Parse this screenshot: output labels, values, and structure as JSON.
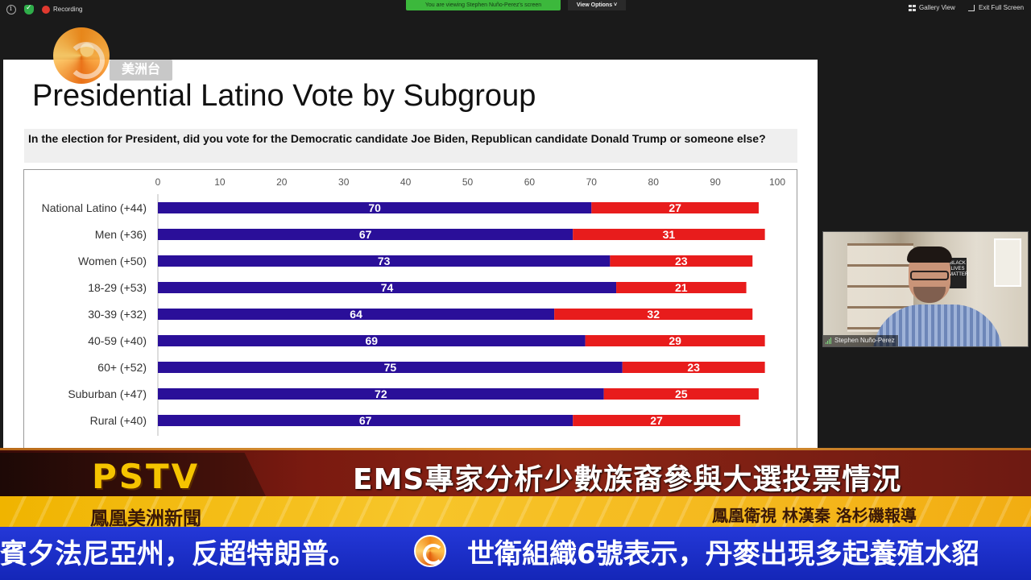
{
  "zoom": {
    "recording_label": "Recording",
    "viewing_banner": "You are viewing Stephen Nuño-Perez's screen",
    "view_options": "View Options ˅",
    "gallery_view": "Gallery View",
    "exit_full_screen": "Exit Full Screen",
    "participant_name": "Stephen Nuño-Perez"
  },
  "logo": {
    "text": "美洲台"
  },
  "poster": {
    "text": "BLACK LIVES MATTER"
  },
  "slide": {
    "title": "Presidential Latino Vote by Subgroup",
    "question": "In the election for President, did you vote for the Democratic candidate Joe Biden, Republican candidate Donald Trump or someone else?"
  },
  "chart_data": {
    "type": "bar",
    "orientation": "horizontal",
    "stacked": true,
    "categories": [
      "National Latino (+44)",
      "Men (+36)",
      "Women (+50)",
      "18-29 (+53)",
      "30-39 (+32)",
      "40-59 (+40)",
      "60+ (+52)",
      "Suburban (+47)",
      "Rural (+40)"
    ],
    "series": [
      {
        "values": [
          70,
          67,
          73,
          74,
          64,
          69,
          75,
          72,
          67
        ],
        "color": "#2a0f99"
      },
      {
        "values": [
          27,
          31,
          23,
          21,
          32,
          29,
          23,
          25,
          27
        ],
        "color": "#e81c1c"
      }
    ],
    "xticks": [
      0,
      10,
      20,
      30,
      40,
      50,
      60,
      70,
      80,
      90,
      100
    ],
    "xlim": [
      0,
      100
    ],
    "tick_position": "top",
    "grid": false,
    "legend": "none"
  },
  "news": {
    "channel": "PSTV",
    "headline": "EMS專家分析少數族裔參與大選投票情況",
    "program": "鳳凰美洲新聞",
    "reporter": "鳳凰衛視 林漢秦 洛杉磯報導",
    "ticker_left": "賓夕法尼亞州，反超特朗普。",
    "ticker_right": "世衛組織6號表示，丹麥出現多起養殖水貂"
  },
  "colors": {
    "biden": "#2a0f99",
    "trump": "#e81c1c",
    "news_red": "#7a1a10",
    "news_yellow": "#f7c52a",
    "news_blue": "#1e30c8",
    "zoom_green": "#3cb83c"
  }
}
